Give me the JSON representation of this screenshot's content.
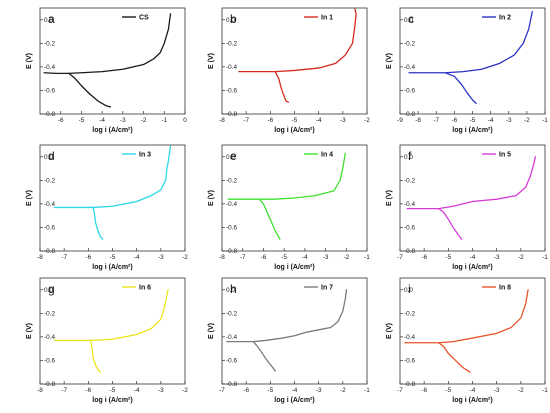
{
  "figure": {
    "xlabel": "log i (A/cm²)",
    "ylabel": "E (V)"
  },
  "chart_data": [
    {
      "type": "line",
      "panel": "a",
      "legend": "CS",
      "color": "#1a1a1a",
      "xlim": [
        -7,
        0
      ],
      "ylim": [
        -0.8,
        0.1
      ],
      "xticks": [
        -6,
        -5,
        -4,
        -3,
        -2,
        -1,
        0
      ],
      "yticks": [
        0.0,
        -0.2,
        -0.4,
        -0.6,
        -0.8
      ],
      "series": [
        {
          "role": "anodic",
          "points": [
            [
              -6.8,
              -0.45
            ],
            [
              -6.2,
              -0.455
            ],
            [
              -5.6,
              -0.455
            ],
            [
              -5.0,
              -0.45
            ],
            [
              -4.0,
              -0.44
            ],
            [
              -3.0,
              -0.42
            ],
            [
              -2.0,
              -0.38
            ],
            [
              -1.5,
              -0.33
            ],
            [
              -1.2,
              -0.28
            ],
            [
              -1.0,
              -0.2
            ],
            [
              -0.8,
              -0.08
            ],
            [
              -0.7,
              0.05
            ]
          ]
        },
        {
          "role": "cathodic",
          "points": [
            [
              -5.6,
              -0.455
            ],
            [
              -5.3,
              -0.5
            ],
            [
              -5.0,
              -0.56
            ],
            [
              -4.6,
              -0.63
            ],
            [
              -4.2,
              -0.69
            ],
            [
              -3.8,
              -0.73
            ],
            [
              -3.6,
              -0.74
            ]
          ]
        }
      ]
    },
    {
      "type": "line",
      "panel": "b",
      "legend": "In 1",
      "color": "#d62a1e",
      "xlim": [
        -8,
        -2
      ],
      "ylim": [
        -0.8,
        0.1
      ],
      "xticks": [
        -8,
        -7,
        -6,
        -5,
        -4,
        -3,
        -2
      ],
      "yticks": [
        0.0,
        -0.2,
        -0.4,
        -0.6,
        -0.8
      ],
      "series": [
        {
          "role": "anodic",
          "points": [
            [
              -7.3,
              -0.44
            ],
            [
              -6.5,
              -0.44
            ],
            [
              -5.8,
              -0.44
            ],
            [
              -5.0,
              -0.43
            ],
            [
              -4.0,
              -0.41
            ],
            [
              -3.3,
              -0.37
            ],
            [
              -2.9,
              -0.3
            ],
            [
              -2.6,
              -0.2
            ],
            [
              -2.5,
              -0.05
            ],
            [
              -2.45,
              0.05
            ],
            [
              -2.5,
              0.09
            ]
          ]
        },
        {
          "role": "cathodic",
          "points": [
            [
              -5.8,
              -0.44
            ],
            [
              -5.65,
              -0.5
            ],
            [
              -5.55,
              -0.58
            ],
            [
              -5.45,
              -0.64
            ],
            [
              -5.35,
              -0.69
            ],
            [
              -5.25,
              -0.7
            ]
          ]
        }
      ]
    },
    {
      "type": "line",
      "panel": "c",
      "legend": "In 2",
      "color": "#2a33c4",
      "xlim": [
        -9,
        -1
      ],
      "ylim": [
        -0.8,
        0.1
      ],
      "xticks": [
        -9,
        -8,
        -7,
        -6,
        -5,
        -4,
        -3,
        -2,
        -1
      ],
      "yticks": [
        0.0,
        -0.2,
        -0.4,
        -0.6,
        -0.8
      ],
      "series": [
        {
          "role": "anodic",
          "points": [
            [
              -8.5,
              -0.45
            ],
            [
              -7.5,
              -0.45
            ],
            [
              -6.5,
              -0.45
            ],
            [
              -5.5,
              -0.44
            ],
            [
              -4.5,
              -0.42
            ],
            [
              -3.5,
              -0.37
            ],
            [
              -2.7,
              -0.3
            ],
            [
              -2.2,
              -0.2
            ],
            [
              -1.9,
              -0.08
            ],
            [
              -1.7,
              0.07
            ]
          ]
        },
        {
          "role": "cathodic",
          "points": [
            [
              -6.5,
              -0.45
            ],
            [
              -6.0,
              -0.48
            ],
            [
              -5.6,
              -0.55
            ],
            [
              -5.3,
              -0.62
            ],
            [
              -5.0,
              -0.68
            ],
            [
              -4.8,
              -0.71
            ]
          ]
        }
      ]
    },
    {
      "type": "line",
      "panel": "d",
      "legend": "In 3",
      "color": "#2ad8e8",
      "xlim": [
        -8,
        -2
      ],
      "ylim": [
        -0.8,
        0.1
      ],
      "xticks": [
        -8,
        -7,
        -6,
        -5,
        -4,
        -3,
        -2
      ],
      "yticks": [
        0.0,
        -0.2,
        -0.4,
        -0.6,
        -0.8
      ],
      "series": [
        {
          "role": "anodic",
          "points": [
            [
              -7.4,
              -0.43
            ],
            [
              -6.5,
              -0.43
            ],
            [
              -5.8,
              -0.43
            ],
            [
              -5.0,
              -0.42
            ],
            [
              -4.0,
              -0.38
            ],
            [
              -3.4,
              -0.33
            ],
            [
              -3.0,
              -0.28
            ],
            [
              -2.8,
              -0.2
            ],
            [
              -2.75,
              -0.1
            ],
            [
              -2.7,
              -0.05
            ],
            [
              -2.65,
              0.02
            ],
            [
              -2.6,
              0.09
            ]
          ]
        },
        {
          "role": "cathodic",
          "points": [
            [
              -5.8,
              -0.43
            ],
            [
              -5.75,
              -0.48
            ],
            [
              -5.7,
              -0.56
            ],
            [
              -5.6,
              -0.63
            ],
            [
              -5.5,
              -0.68
            ],
            [
              -5.4,
              -0.7
            ]
          ]
        }
      ]
    },
    {
      "type": "line",
      "panel": "e",
      "legend": "In 4",
      "color": "#3ee02c",
      "xlim": [
        -8,
        -1
      ],
      "ylim": [
        -0.8,
        0.1
      ],
      "xticks": [
        -8,
        -7,
        -6,
        -5,
        -4,
        -3,
        -2,
        -1
      ],
      "yticks": [
        0.0,
        -0.2,
        -0.4,
        -0.6,
        -0.8
      ],
      "series": [
        {
          "role": "anodic",
          "points": [
            [
              -7.7,
              -0.36
            ],
            [
              -7.0,
              -0.36
            ],
            [
              -6.2,
              -0.36
            ],
            [
              -5.5,
              -0.36
            ],
            [
              -4.5,
              -0.35
            ],
            [
              -3.5,
              -0.33
            ],
            [
              -2.6,
              -0.29
            ],
            [
              -2.3,
              -0.2
            ],
            [
              -2.15,
              -0.08
            ],
            [
              -2.05,
              0.03
            ]
          ]
        },
        {
          "role": "cathodic",
          "points": [
            [
              -6.2,
              -0.36
            ],
            [
              -6.0,
              -0.4
            ],
            [
              -5.8,
              -0.48
            ],
            [
              -5.6,
              -0.56
            ],
            [
              -5.4,
              -0.64
            ],
            [
              -5.2,
              -0.7
            ]
          ]
        }
      ]
    },
    {
      "type": "line",
      "panel": "f",
      "legend": "In 5",
      "color": "#d63ad8",
      "xlim": [
        -7,
        -1
      ],
      "ylim": [
        -0.8,
        0.1
      ],
      "xticks": [
        -7,
        -6,
        -5,
        -4,
        -3,
        -2,
        -1
      ],
      "yticks": [
        0.0,
        -0.2,
        -0.4,
        -0.6,
        -0.8
      ],
      "series": [
        {
          "role": "anodic",
          "points": [
            [
              -6.7,
              -0.44
            ],
            [
              -6.0,
              -0.44
            ],
            [
              -5.4,
              -0.44
            ],
            [
              -4.8,
              -0.42
            ],
            [
              -4.0,
              -0.38
            ],
            [
              -3.0,
              -0.36
            ],
            [
              -2.2,
              -0.33
            ],
            [
              -1.8,
              -0.26
            ],
            [
              -1.6,
              -0.16
            ],
            [
              -1.45,
              -0.05
            ],
            [
              -1.4,
              0.0
            ]
          ]
        },
        {
          "role": "cathodic",
          "points": [
            [
              -5.4,
              -0.44
            ],
            [
              -5.2,
              -0.47
            ],
            [
              -5.0,
              -0.53
            ],
            [
              -4.8,
              -0.6
            ],
            [
              -4.6,
              -0.66
            ],
            [
              -4.45,
              -0.7
            ]
          ]
        }
      ]
    },
    {
      "type": "line",
      "panel": "g",
      "legend": "In 6",
      "color": "#ece41c",
      "xlim": [
        -8,
        -2
      ],
      "ylim": [
        -0.8,
        0.1
      ],
      "xticks": [
        -8,
        -7,
        -6,
        -5,
        -4,
        -3,
        -2
      ],
      "yticks": [
        0.0,
        -0.2,
        -0.4,
        -0.6,
        -0.8
      ],
      "series": [
        {
          "role": "anodic",
          "points": [
            [
              -7.4,
              -0.43
            ],
            [
              -6.6,
              -0.43
            ],
            [
              -5.9,
              -0.43
            ],
            [
              -5.0,
              -0.42
            ],
            [
              -4.0,
              -0.38
            ],
            [
              -3.4,
              -0.33
            ],
            [
              -3.0,
              -0.25
            ],
            [
              -2.85,
              -0.15
            ],
            [
              -2.75,
              -0.05
            ],
            [
              -2.7,
              0.0
            ]
          ]
        },
        {
          "role": "cathodic",
          "points": [
            [
              -5.9,
              -0.43
            ],
            [
              -5.85,
              -0.5
            ],
            [
              -5.8,
              -0.58
            ],
            [
              -5.7,
              -0.64
            ],
            [
              -5.6,
              -0.68
            ],
            [
              -5.5,
              -0.7
            ]
          ]
        }
      ]
    },
    {
      "type": "line",
      "panel": "h",
      "legend": "In 7",
      "color": "#7a7a7a",
      "xlim": [
        -7,
        -1
      ],
      "ylim": [
        -0.8,
        0.1
      ],
      "xticks": [
        -7,
        -6,
        -5,
        -4,
        -3,
        -2,
        -1
      ],
      "yticks": [
        0.0,
        -0.2,
        -0.4,
        -0.6,
        -0.8
      ],
      "series": [
        {
          "role": "anodic",
          "points": [
            [
              -6.8,
              -0.44
            ],
            [
              -6.2,
              -0.44
            ],
            [
              -5.7,
              -0.44
            ],
            [
              -5.2,
              -0.43
            ],
            [
              -4.5,
              -0.41
            ],
            [
              -4.0,
              -0.39
            ],
            [
              -3.5,
              -0.36
            ],
            [
              -3.0,
              -0.34
            ],
            [
              -2.5,
              -0.32
            ],
            [
              -2.2,
              -0.27
            ],
            [
              -2.0,
              -0.18
            ],
            [
              -1.9,
              -0.08
            ],
            [
              -1.85,
              0.0
            ]
          ]
        },
        {
          "role": "cathodic",
          "points": [
            [
              -5.7,
              -0.44
            ],
            [
              -5.5,
              -0.49
            ],
            [
              -5.3,
              -0.55
            ],
            [
              -5.1,
              -0.61
            ],
            [
              -4.9,
              -0.66
            ],
            [
              -4.8,
              -0.69
            ]
          ]
        }
      ]
    },
    {
      "type": "line",
      "panel": "i",
      "legend": "In 8",
      "color": "#e8552a",
      "xlim": [
        -7,
        -1
      ],
      "ylim": [
        -0.8,
        0.1
      ],
      "xticks": [
        -7,
        -6,
        -5,
        -4,
        -3,
        -2,
        -1
      ],
      "yticks": [
        0.0,
        -0.2,
        -0.4,
        -0.6,
        -0.8
      ],
      "series": [
        {
          "role": "anodic",
          "points": [
            [
              -6.8,
              -0.45
            ],
            [
              -6.0,
              -0.45
            ],
            [
              -5.4,
              -0.45
            ],
            [
              -4.8,
              -0.44
            ],
            [
              -4.0,
              -0.41
            ],
            [
              -3.0,
              -0.37
            ],
            [
              -2.4,
              -0.32
            ],
            [
              -2.0,
              -0.24
            ],
            [
              -1.8,
              -0.12
            ],
            [
              -1.7,
              0.0
            ]
          ]
        },
        {
          "role": "cathodic",
          "points": [
            [
              -5.4,
              -0.45
            ],
            [
              -5.2,
              -0.48
            ],
            [
              -5.0,
              -0.54
            ],
            [
              -4.7,
              -0.6
            ],
            [
              -4.4,
              -0.66
            ],
            [
              -4.1,
              -0.7
            ]
          ]
        }
      ]
    }
  ]
}
